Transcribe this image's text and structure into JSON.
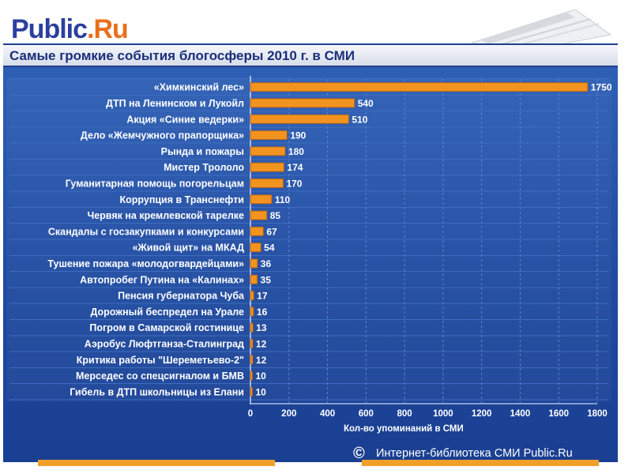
{
  "logo": {
    "part1": "Public",
    "part2": ".Ru"
  },
  "header": {
    "title": "Самые громкие события блогосферы 2010 г. в СМИ"
  },
  "copyright": {
    "symbol": "©",
    "text": "Интернет-библиотека СМИ Public.Ru"
  },
  "colors": {
    "bar": "#f29320",
    "bar_stroke": "#b85e0c",
    "panel": "#1f4aa0",
    "grid": "#3d6cc0"
  },
  "chart_data": {
    "type": "bar",
    "orientation": "horizontal",
    "title": "Самые громкие события блогосферы 2010 г. в СМИ",
    "xlabel": "Кол-во упоминаний в СМИ",
    "ylabel": "",
    "xlim": [
      0,
      1800
    ],
    "xticks": [
      0,
      200,
      400,
      600,
      800,
      1000,
      1200,
      1400,
      1600,
      1800
    ],
    "categories": [
      "«Химкинский лес»",
      "ДТП на Ленинском и Лукойл",
      "Акция «Синие ведерки»",
      "Дело «Жемчужного прапорщика»",
      "Рында и пожары",
      "Мистер Трололо",
      "Гуманитарная помощь погорельцам",
      "Коррупция в Транснефти",
      "Червяк на кремлевской тарелке",
      "Скандалы с госзакупками и конкурсами",
      "«Живой щит» на МКАД",
      "Тушение пожара «молодогвардейцами»",
      "Автопробег Путина на «Калинах»",
      "Пенсия губернатора Чуба",
      "Дорожный беспредел на Урале",
      "Погром в Самарской гостинице",
      "Аэробус Люфтганза-Сталинград",
      "Критика работы \"Шереметьево-2\"",
      "Мерседес со спецсигналом и БМВ",
      "Гибель в ДТП школьницы из Елани"
    ],
    "values": [
      1750,
      540,
      510,
      190,
      180,
      174,
      170,
      110,
      85,
      67,
      54,
      36,
      35,
      17,
      16,
      13,
      12,
      12,
      10,
      10
    ]
  }
}
